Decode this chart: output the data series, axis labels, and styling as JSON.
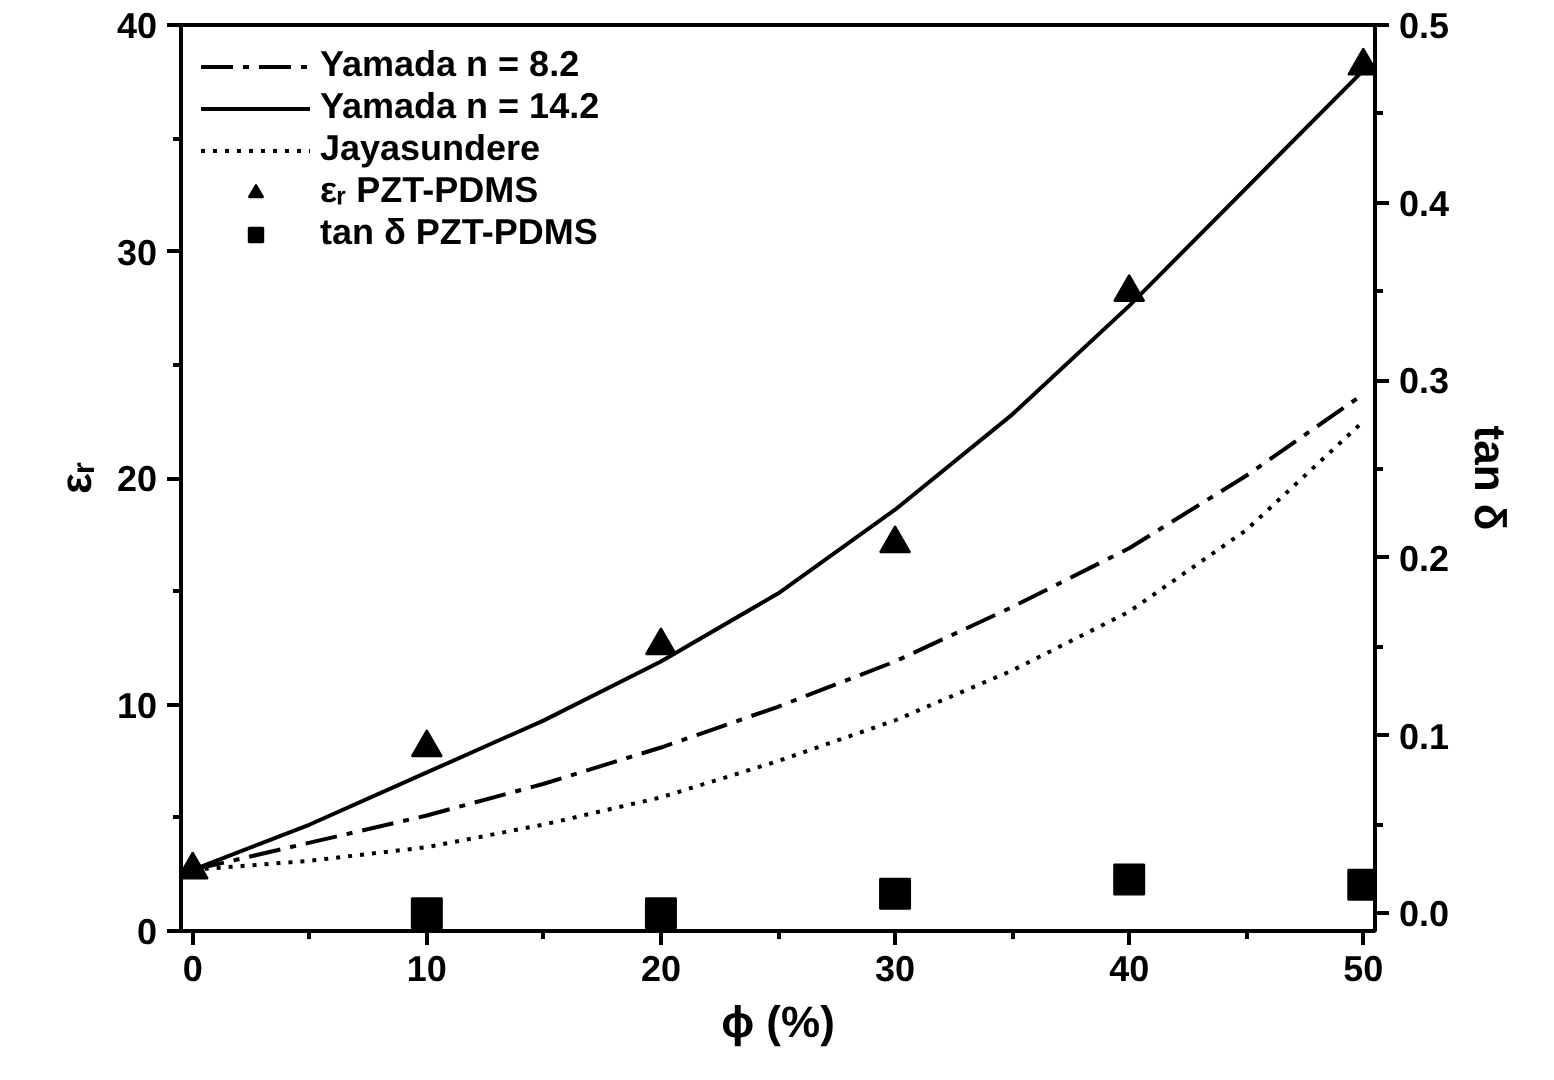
{
  "chart_data": {
    "type": "line",
    "xlabel": "ϕ (%)",
    "ylabel": "εᵣ",
    "y2label": "tan δ",
    "x": [
      0,
      5,
      10,
      15,
      20,
      25,
      30,
      35,
      40,
      45,
      50
    ],
    "xlim": [
      -0.5,
      50.5
    ],
    "xticks": [
      0,
      10,
      20,
      30,
      40,
      50
    ],
    "ylim": [
      0,
      40
    ],
    "yticks": [
      0,
      10,
      20,
      30,
      40
    ],
    "y2lim": [
      -0.01,
      0.5
    ],
    "y2ticks": [
      {
        "value": 0,
        "label": "0.0"
      },
      0.1,
      0.2,
      0.3,
      0.4,
      0.5
    ],
    "grid": false,
    "legend": "top left",
    "series": [
      {
        "name": "Yamada n = 8.2",
        "line_style": "dashdot",
        "marker": "none",
        "color": "#000000",
        "values": [
          2.7,
          3.9,
          5.1,
          6.5,
          8.1,
          9.9,
          11.9,
          14.3,
          16.9,
          20.1,
          23.7
        ]
      },
      {
        "name": "Yamada n = 14.2",
        "line_style": "solid",
        "marker": "none",
        "color": "#000000",
        "values": [
          2.7,
          4.7,
          7.0,
          9.3,
          11.9,
          14.9,
          18.6,
          22.8,
          27.6,
          32.8,
          38.0
        ]
      },
      {
        "name": "Jayasundere",
        "line_style": "dotted",
        "marker": "none",
        "color": "#000000",
        "values": [
          2.7,
          3.1,
          3.7,
          4.7,
          5.9,
          7.5,
          9.3,
          11.5,
          14.1,
          17.7,
          22.5
        ]
      },
      {
        "name": "εᵣ PZT-PDMS",
        "type": "scatter",
        "marker": "triangle",
        "color": "#000000",
        "x": [
          0,
          10,
          20,
          30,
          40,
          50
        ],
        "values": [
          2.7,
          8.1,
          12.6,
          17.1,
          28.2,
          38.2
        ]
      },
      {
        "name": "tan δ PZT-PDMS",
        "type": "scatter",
        "marker": "square",
        "axis": "y2",
        "color": "#000000",
        "x": [
          10,
          20,
          30,
          40,
          50
        ],
        "values": [
          0.0,
          0.0,
          0.011,
          0.019,
          0.016
        ]
      }
    ]
  }
}
